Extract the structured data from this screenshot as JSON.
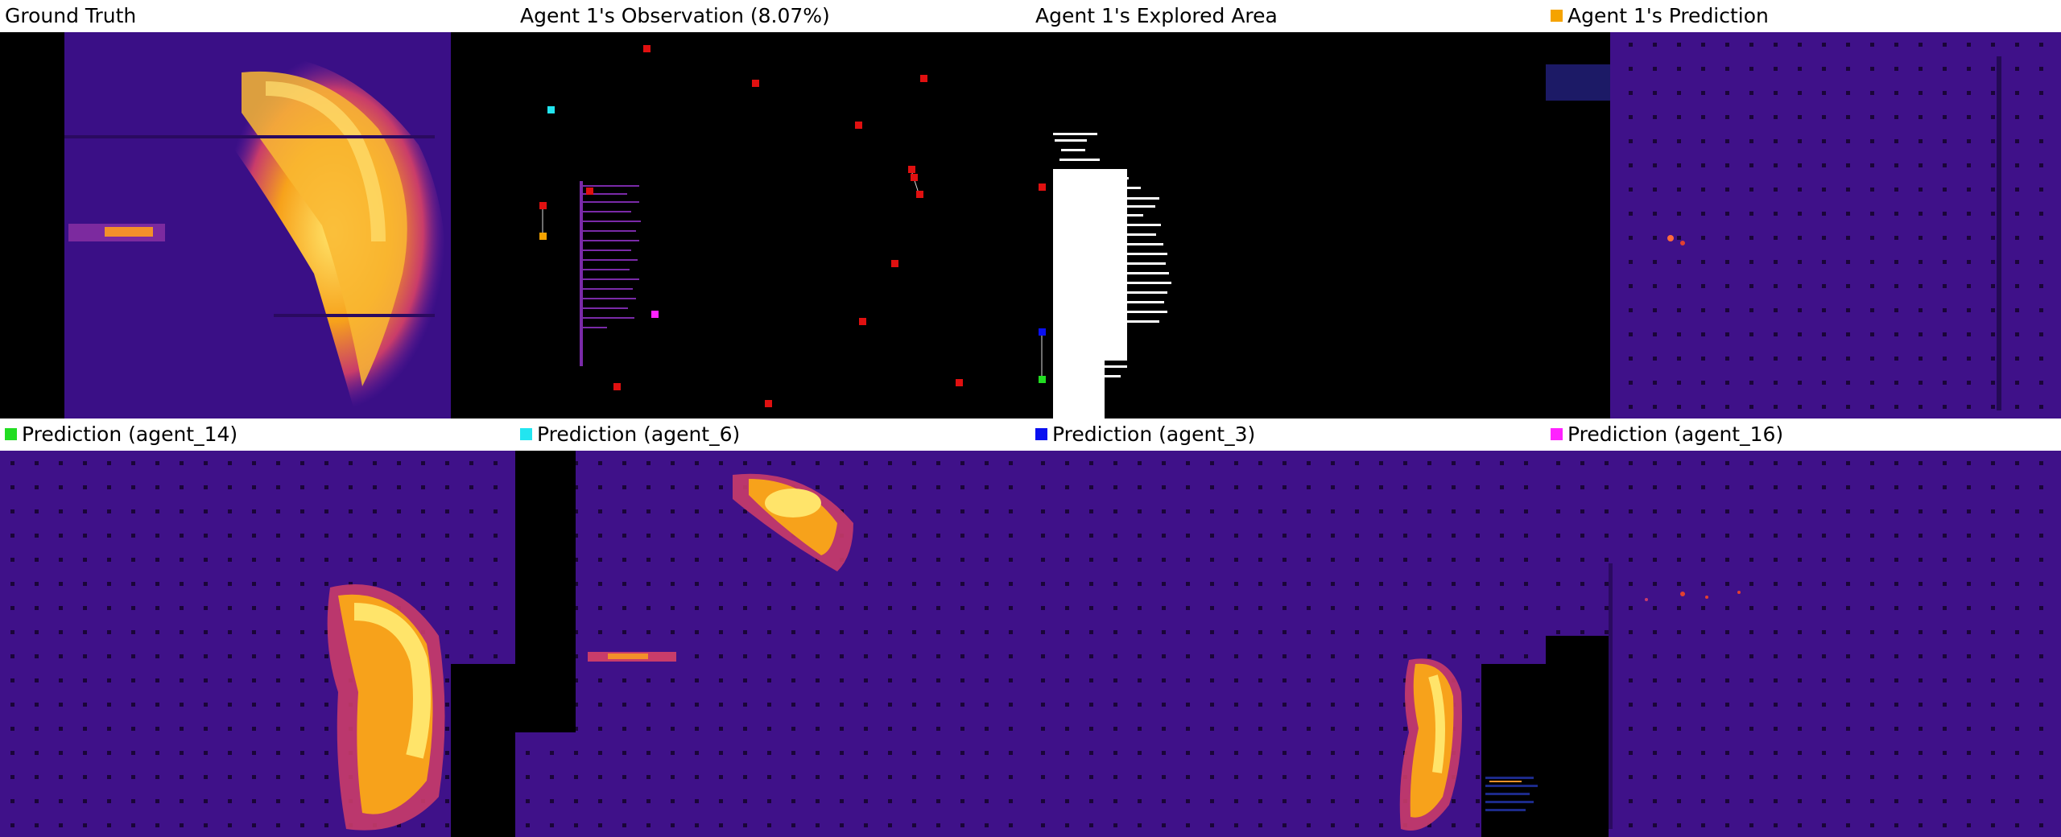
{
  "labels": {
    "ground_truth": "Ground Truth",
    "observation": "Agent 1's Observation (8.07%)",
    "explored": "Agent 1's Explored Area",
    "prediction": "Agent 1's Prediction",
    "pred_agent14": "Prediction (agent_14)",
    "pred_agent6": "Prediction (agent_6)",
    "pred_agent3": "Prediction (agent_3)",
    "pred_agent16": "Prediction (agent_16)"
  },
  "colors": {
    "agent_1": "#f5a300",
    "agent_14": "#22dd22",
    "agent_6": "#22e5f0",
    "agent_3": "#0a10f0",
    "agent_16": "#ff22ff",
    "marker_red": "#e01010"
  }
}
